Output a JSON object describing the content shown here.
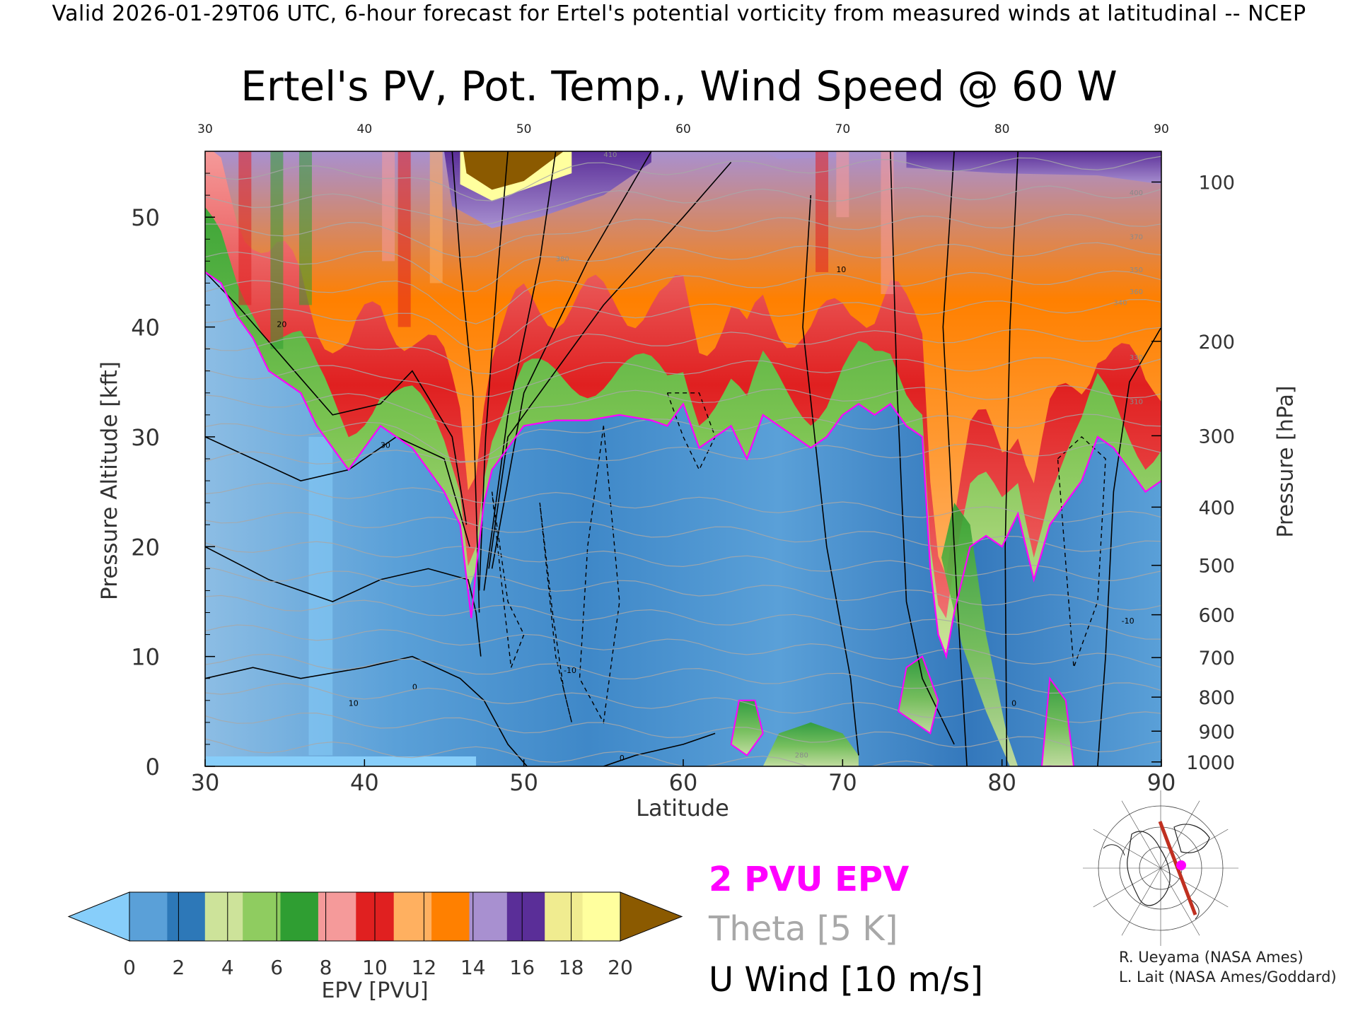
{
  "header": {
    "text": "Valid 2026-01-29T06 UTC, 6-hour forecast for Ertel's potential vorticity from measured winds at latitudinal -- NCEP"
  },
  "chart_data": {
    "type": "heatmap",
    "title": "Ertel's PV, Pot. Temp., Wind Speed @ 60 W",
    "xlabel": "Latitude",
    "ylabel": "Pressure Altitude [kft]",
    "ylabel_right": "Pressure [hPa]",
    "xlim": [
      30,
      90
    ],
    "ylim": [
      0,
      56
    ],
    "x_ticks": [
      "30",
      "40",
      "50",
      "60",
      "70",
      "80",
      "90"
    ],
    "y_ticks": [
      "0",
      "10",
      "20",
      "30",
      "40",
      "50"
    ],
    "pressure_ticks": [
      {
        "label": "1000",
        "kft": 0.4
      },
      {
        "label": "900",
        "kft": 3.2
      },
      {
        "label": "800",
        "kft": 6.3
      },
      {
        "label": "700",
        "kft": 9.9
      },
      {
        "label": "600",
        "kft": 13.8
      },
      {
        "label": "500",
        "kft": 18.3
      },
      {
        "label": "400",
        "kft": 23.6
      },
      {
        "label": "300",
        "kft": 30.1
      },
      {
        "label": "200",
        "kft": 38.7
      },
      {
        "label": "100",
        "kft": 53.2
      }
    ],
    "grid": false,
    "colorbar": {
      "label": "EPV [PVU]",
      "ticks": [
        "0",
        "2",
        "4",
        "6",
        "8",
        "10",
        "12",
        "14",
        "16",
        "18",
        "20"
      ],
      "colors": [
        "#5aa0d8",
        "#2d78b8",
        "#cde39a",
        "#8fcc60",
        "#2f9e32",
        "#f59a9a",
        "#e02020",
        "#ffb060",
        "#ff8000",
        "#a890d0",
        "#5a2e98",
        "#f0ec90",
        "#ffff9e"
      ],
      "under_color": "#87cefa",
      "over_color": "#8b5a00"
    },
    "pv2_boundary": {
      "x": [
        30,
        31,
        32,
        33,
        34,
        35,
        36,
        37,
        38,
        39,
        40,
        41,
        42,
        43,
        44,
        45,
        46,
        46.7,
        47,
        47.5,
        48,
        48.5,
        49,
        50,
        52,
        54,
        56,
        58,
        59,
        60,
        61,
        62,
        63,
        64,
        65,
        66,
        67,
        68,
        69,
        70,
        71,
        72,
        73,
        74,
        75,
        75.5,
        76,
        76.5,
        77,
        78,
        79,
        80,
        81,
        82,
        83,
        84,
        85,
        86,
        87,
        88,
        89,
        90
      ],
      "kft": [
        45,
        44,
        41,
        39,
        36,
        35,
        34,
        31,
        29,
        27,
        29,
        31,
        30,
        29,
        27,
        25,
        22,
        13.5,
        18,
        24,
        27,
        28,
        29,
        31,
        31.5,
        31.5,
        32,
        31.5,
        31,
        33,
        29,
        30,
        31,
        28,
        32,
        31,
        30,
        29,
        30,
        32,
        33,
        32,
        33,
        31,
        30,
        18,
        12,
        10,
        14,
        20,
        21,
        20,
        23,
        17,
        22,
        24,
        26,
        30,
        29,
        27,
        25,
        26
      ]
    },
    "wind_contour_labels": [
      "0",
      "10",
      "20",
      "30",
      "-10"
    ],
    "theta_contour_labels": [
      "280",
      "310",
      "330",
      "340",
      "350",
      "360",
      "370",
      "380",
      "400",
      "410"
    ]
  },
  "legend": {
    "pv_label": "2 PVU EPV",
    "theta_label": "Theta [5 K]",
    "wind_label": "U Wind [10 m/s]"
  },
  "credits": {
    "line1": "R. Ueyama (NASA Ames)",
    "line2": "L. Lait (NASA Ames/Goddard)"
  },
  "colors": {
    "pv_contour": "#ff00ff",
    "theta_contour": "#a8a8a8",
    "wind_contour": "#000000",
    "section_line": "#c03020"
  },
  "icons": {
    "inset_map": "north-polar-map-icon"
  }
}
